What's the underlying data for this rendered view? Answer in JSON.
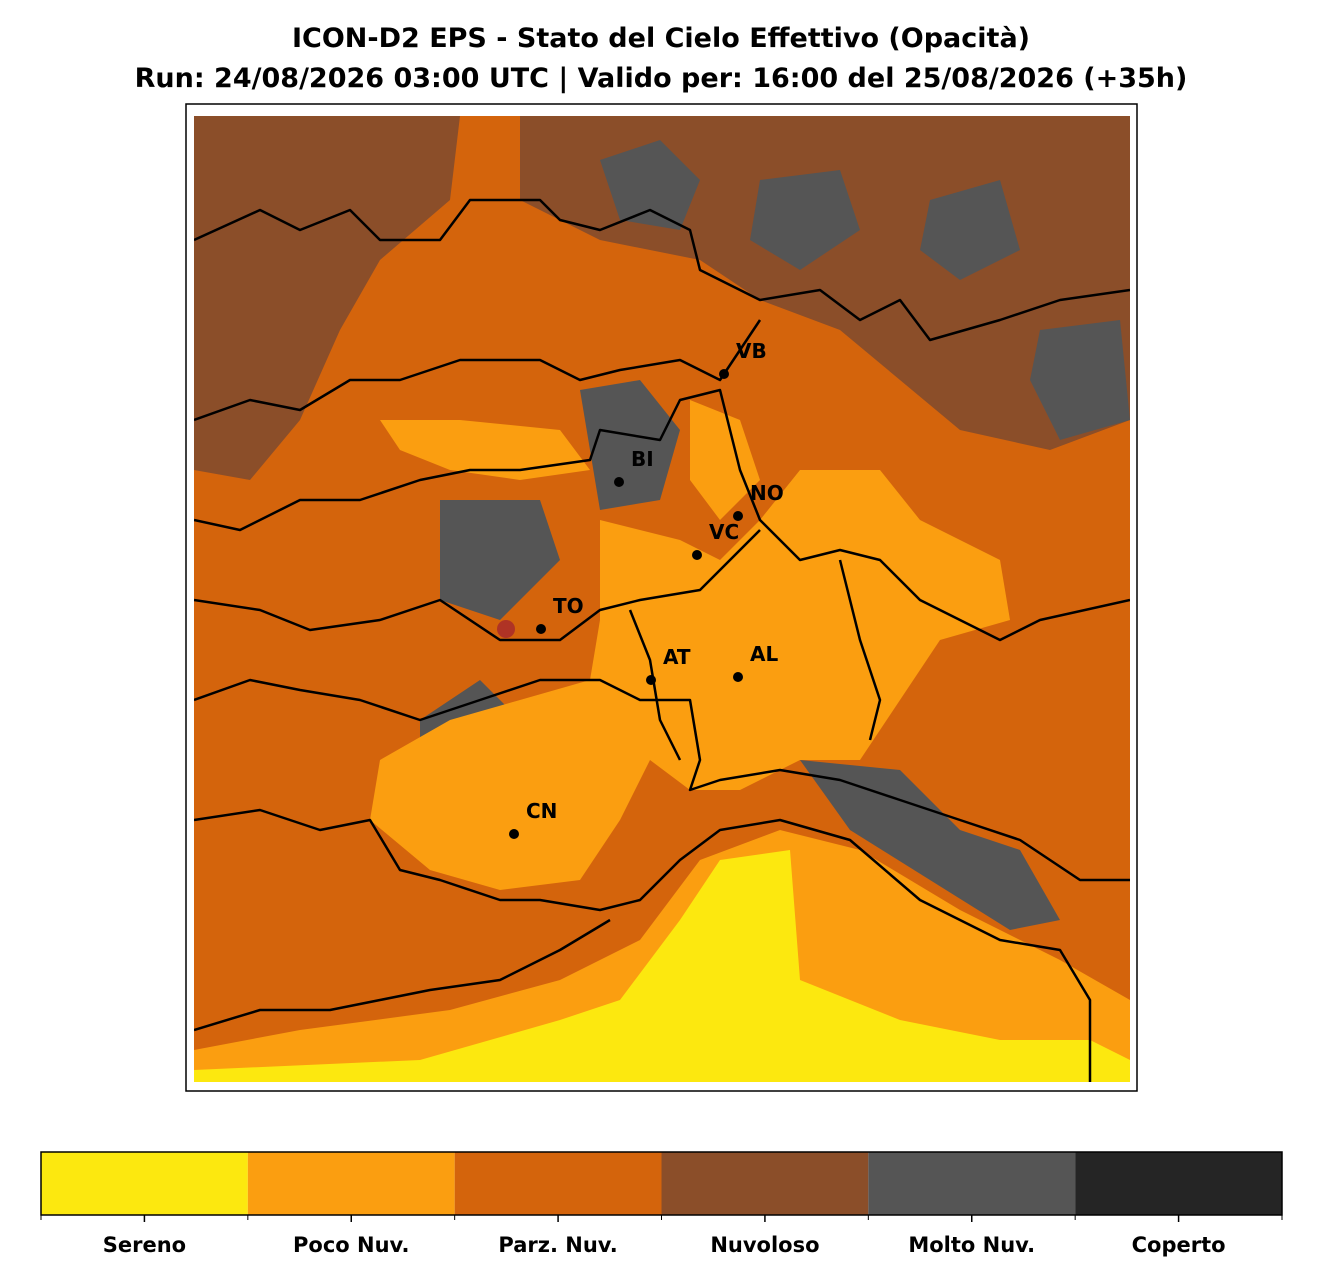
{
  "header": {
    "title": "ICON-D2 EPS - Stato del Cielo Effettivo (Opacità)",
    "subtitle": "Run: 24/08/2026 03:00 UTC | Valido per: 16:00 del 25/08/2026 (+35h)"
  },
  "cities": [
    {
      "label": "VB"
    },
    {
      "label": "BI"
    },
    {
      "label": "NO"
    },
    {
      "label": "VC"
    },
    {
      "label": "TO"
    },
    {
      "label": "AT"
    },
    {
      "label": "AL"
    },
    {
      "label": "CN"
    }
  ],
  "colorbar": {
    "classes": [
      {
        "label": "Sereno",
        "color": "#fce80f"
      },
      {
        "label": "Poco Nuv.",
        "color": "#fb9e10"
      },
      {
        "label": "Parz. Nuv.",
        "color": "#d4640c"
      },
      {
        "label": "Nuvoloso",
        "color": "#8b4e29"
      },
      {
        "label": "Molto Nuv.",
        "color": "#555555"
      },
      {
        "label": "Coperto",
        "color": "#252525"
      }
    ]
  }
}
